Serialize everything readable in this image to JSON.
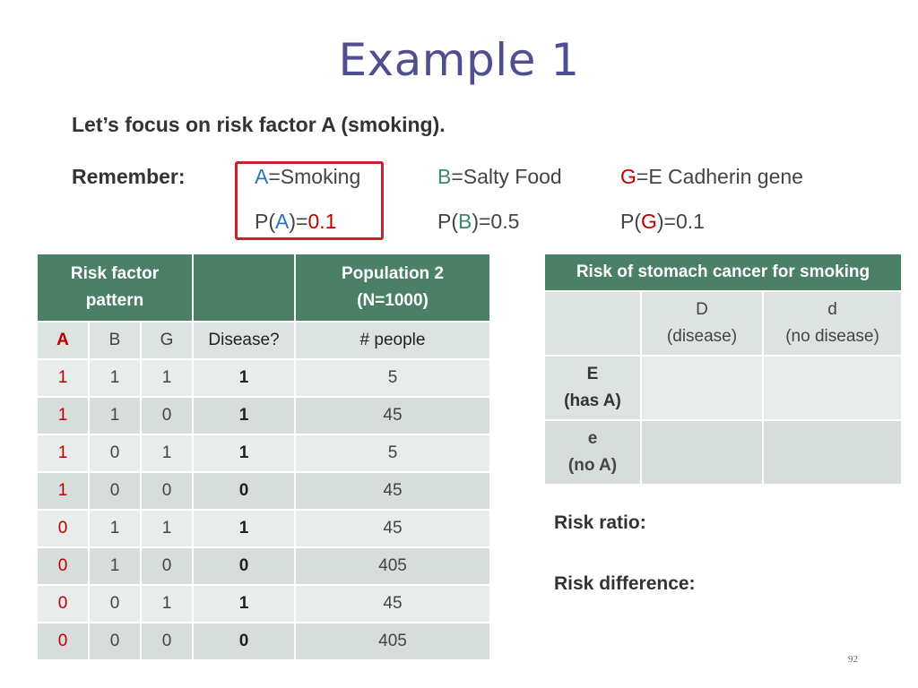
{
  "title": "Example 1",
  "focus_text": "Let’s focus on risk factor A (smoking).",
  "remember": {
    "label": "Remember:",
    "A_letter": "A",
    "A_rest": "=Smoking",
    "B_letter": "B",
    "B_rest": "=Salty Food",
    "G_letter": "G",
    "G_rest": "=E Cadherin gene",
    "pA_open": "P(",
    "pA_letter": "A",
    "pA_mid": ")=",
    "pA_val": "0.1",
    "pB_open": "P(",
    "pB_letter": "B",
    "pB_rest": ")=0.5",
    "pG_open": "P(",
    "pG_letter": "G",
    "pG_rest": ")=0.1"
  },
  "population_table": {
    "header_pattern_line1": "Risk factor",
    "header_pattern_line2": "pattern",
    "header_pop_line1": "Population 2",
    "header_pop_line2": "(N=1000)",
    "columns": [
      "A",
      "B",
      "G",
      "Disease?",
      "# people"
    ],
    "rows": [
      [
        "1",
        "1",
        "1",
        "1",
        "5"
      ],
      [
        "1",
        "1",
        "0",
        "1",
        "45"
      ],
      [
        "1",
        "0",
        "1",
        "1",
        "5"
      ],
      [
        "1",
        "0",
        "0",
        "0",
        "45"
      ],
      [
        "0",
        "1",
        "1",
        "1",
        "45"
      ],
      [
        "0",
        "1",
        "0",
        "0",
        "405"
      ],
      [
        "0",
        "0",
        "1",
        "1",
        "45"
      ],
      [
        "0",
        "0",
        "0",
        "0",
        "405"
      ]
    ]
  },
  "risk_table": {
    "title": "Risk of stomach cancer for smoking",
    "col_D_line1": "D",
    "col_D_line2": "(disease)",
    "col_d_line1": "d",
    "col_d_line2": "(no disease)",
    "row_E_line1": "E",
    "row_E_line2": "(has A)",
    "row_e_line1": "e",
    "row_e_line2": "(no A)"
  },
  "risk_ratio_label": "Risk ratio:",
  "risk_difference_label": "Risk difference:",
  "page_number": "92",
  "colors": {
    "title": "#4f4f8f",
    "header_green": "#4b8066",
    "highlight_red": "#c8202c",
    "A_blue": "#2e73b8",
    "B_teal": "#3b8a6e",
    "G_red": "#c00000"
  }
}
